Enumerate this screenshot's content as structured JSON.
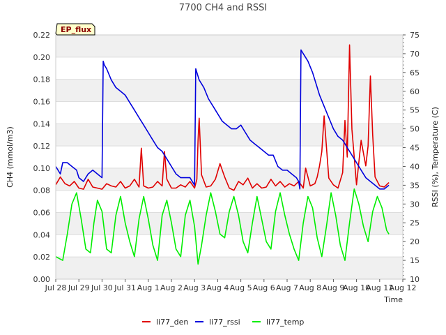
{
  "chart_data": {
    "type": "line",
    "title": "7700 CH4 and RSSI",
    "badge": "EP_flux",
    "xlabel": "Time",
    "ylabel": "CH4 (mmol/m3)",
    "ylabel_right": "RSSI (%), Temperature (C)",
    "xlim": [
      0,
      15
    ],
    "ylim": [
      0.0,
      0.22
    ],
    "ylim_right": [
      10,
      75
    ],
    "x_ticks": [
      {
        "x": 0,
        "label": "Jul 28"
      },
      {
        "x": 1,
        "label": "Jul 29"
      },
      {
        "x": 2,
        "label": "Jul 30"
      },
      {
        "x": 3,
        "label": "Jul 31"
      },
      {
        "x": 4,
        "label": "Aug 1"
      },
      {
        "x": 5,
        "label": "Aug 2"
      },
      {
        "x": 6,
        "label": "Aug 3"
      },
      {
        "x": 7,
        "label": "Aug 4"
      },
      {
        "x": 8,
        "label": "Aug 5"
      },
      {
        "x": 9,
        "label": "Aug 6"
      },
      {
        "x": 10,
        "label": "Aug 7"
      },
      {
        "x": 11,
        "label": "Aug 8"
      },
      {
        "x": 12,
        "label": "Aug 9"
      },
      {
        "x": 13,
        "label": "Aug 10"
      },
      {
        "x": 14,
        "label": "Aug 11"
      },
      {
        "x": 15,
        "label": "Aug 12"
      }
    ],
    "y_ticks": [
      0.0,
      0.02,
      0.04,
      0.06,
      0.08,
      0.1,
      0.12,
      0.14,
      0.16,
      0.18,
      0.2,
      0.22
    ],
    "y_ticks_right": [
      10,
      15,
      20,
      25,
      30,
      35,
      40,
      45,
      50,
      55,
      60,
      65,
      70,
      75
    ],
    "series": [
      {
        "name": "li77_den",
        "color": "#e00000",
        "axis": "left",
        "x": [
          0.0,
          0.2,
          0.4,
          0.6,
          0.8,
          1.0,
          1.2,
          1.4,
          1.6,
          1.8,
          2.0,
          2.2,
          2.4,
          2.6,
          2.8,
          3.0,
          3.2,
          3.4,
          3.6,
          3.7,
          3.8,
          4.0,
          4.2,
          4.4,
          4.6,
          4.7,
          4.8,
          5.0,
          5.2,
          5.4,
          5.6,
          5.8,
          6.0,
          6.1,
          6.15,
          6.2,
          6.3,
          6.5,
          6.7,
          6.9,
          7.1,
          7.3,
          7.5,
          7.7,
          7.9,
          8.1,
          8.3,
          8.5,
          8.7,
          8.9,
          9.1,
          9.3,
          9.5,
          9.7,
          9.9,
          10.1,
          10.3,
          10.5,
          10.7,
          10.8,
          11.0,
          11.2,
          11.3,
          11.4,
          11.5,
          11.6,
          11.8,
          12.0,
          12.2,
          12.4,
          12.5,
          12.6,
          12.7,
          12.8,
          13.0,
          13.2,
          13.4,
          13.5,
          13.6,
          13.7,
          13.8,
          14.0,
          14.2,
          14.4
        ],
        "y": [
          0.085,
          0.092,
          0.086,
          0.084,
          0.088,
          0.082,
          0.081,
          0.09,
          0.083,
          0.082,
          0.081,
          0.086,
          0.084,
          0.083,
          0.088,
          0.082,
          0.084,
          0.09,
          0.083,
          0.118,
          0.084,
          0.082,
          0.083,
          0.088,
          0.084,
          0.115,
          0.09,
          0.082,
          0.082,
          0.085,
          0.083,
          0.088,
          0.082,
          0.09,
          0.125,
          0.145,
          0.094,
          0.083,
          0.084,
          0.09,
          0.104,
          0.092,
          0.082,
          0.08,
          0.088,
          0.085,
          0.091,
          0.082,
          0.086,
          0.082,
          0.083,
          0.09,
          0.084,
          0.088,
          0.083,
          0.086,
          0.084,
          0.088,
          0.082,
          0.1,
          0.084,
          0.086,
          0.092,
          0.102,
          0.115,
          0.147,
          0.091,
          0.085,
          0.082,
          0.096,
          0.143,
          0.11,
          0.211,
          0.135,
          0.085,
          0.125,
          0.102,
          0.12,
          0.183,
          0.13,
          0.092,
          0.084,
          0.083,
          0.087
        ]
      },
      {
        "name": "li77_rssi",
        "color": "#0000dd",
        "axis": "right",
        "x": [
          0.0,
          0.2,
          0.3,
          0.5,
          0.7,
          0.9,
          1.0,
          1.2,
          1.4,
          1.6,
          1.8,
          2.0,
          2.05,
          2.1,
          2.2,
          2.4,
          2.6,
          2.8,
          3.0,
          3.2,
          3.4,
          3.6,
          3.8,
          4.0,
          4.2,
          4.4,
          4.6,
          4.8,
          5.0,
          5.2,
          5.4,
          5.6,
          5.8,
          6.0,
          6.05,
          6.1,
          6.2,
          6.4,
          6.6,
          6.8,
          7.0,
          7.2,
          7.4,
          7.6,
          7.8,
          8.0,
          8.2,
          8.4,
          8.6,
          8.8,
          9.0,
          9.2,
          9.4,
          9.6,
          9.8,
          10.0,
          10.2,
          10.4,
          10.5,
          10.55,
          10.6,
          10.7,
          10.9,
          11.1,
          11.3,
          11.4,
          11.6,
          11.8,
          12.0,
          12.2,
          12.4,
          12.6,
          12.8,
          13.0,
          13.2,
          13.4,
          13.6,
          13.8,
          14.0,
          14.2,
          14.4
        ],
        "y": [
          40,
          38,
          41,
          41,
          40,
          39,
          37,
          36,
          38,
          39,
          38,
          37,
          68,
          67,
          66,
          63,
          61,
          60,
          59,
          57,
          55,
          53,
          51,
          49,
          47,
          45,
          44,
          42,
          40,
          38,
          37,
          37,
          37,
          35,
          66,
          65,
          63,
          61,
          58,
          56,
          54,
          52,
          51,
          50,
          50,
          51,
          49,
          47,
          46,
          45,
          44,
          43,
          43,
          40,
          39,
          39,
          38,
          37,
          36,
          34,
          71,
          70,
          68,
          65,
          61,
          59,
          56,
          53,
          50,
          48,
          47,
          45,
          43,
          41,
          39,
          37,
          36,
          35,
          34,
          34,
          35
        ]
      },
      {
        "name": "li77_temp",
        "color": "#00ee00",
        "axis": "right",
        "x": [
          0.0,
          0.15,
          0.3,
          0.5,
          0.7,
          0.9,
          1.1,
          1.3,
          1.5,
          1.65,
          1.8,
          2.0,
          2.2,
          2.4,
          2.6,
          2.8,
          3.0,
          3.2,
          3.4,
          3.6,
          3.8,
          4.0,
          4.2,
          4.4,
          4.6,
          4.8,
          5.0,
          5.2,
          5.4,
          5.6,
          5.8,
          6.0,
          6.15,
          6.3,
          6.5,
          6.7,
          6.9,
          7.1,
          7.3,
          7.5,
          7.7,
          7.9,
          8.1,
          8.3,
          8.5,
          8.7,
          8.9,
          9.1,
          9.3,
          9.5,
          9.7,
          9.9,
          10.1,
          10.3,
          10.5,
          10.7,
          10.9,
          11.1,
          11.3,
          11.5,
          11.7,
          11.9,
          12.1,
          12.3,
          12.5,
          12.7,
          12.9,
          13.1,
          13.3,
          13.5,
          13.7,
          13.9,
          14.1,
          14.3,
          14.4
        ],
        "y": [
          16,
          15.5,
          15,
          22,
          30,
          33,
          26,
          18,
          17,
          25,
          31,
          28,
          18,
          17,
          27,
          32,
          25,
          20,
          16,
          26,
          32,
          26,
          19,
          15,
          27,
          31,
          25,
          18,
          16,
          27,
          31,
          24,
          14,
          19,
          27,
          33,
          28,
          22,
          21,
          28,
          32,
          27,
          20,
          17,
          25,
          32,
          26,
          20,
          18,
          28,
          33,
          27,
          22,
          18,
          15,
          25,
          32,
          29,
          21,
          16,
          24,
          33,
          27,
          19,
          15,
          25,
          34,
          30,
          24,
          20,
          28,
          32,
          29,
          23,
          22
        ]
      }
    ]
  }
}
